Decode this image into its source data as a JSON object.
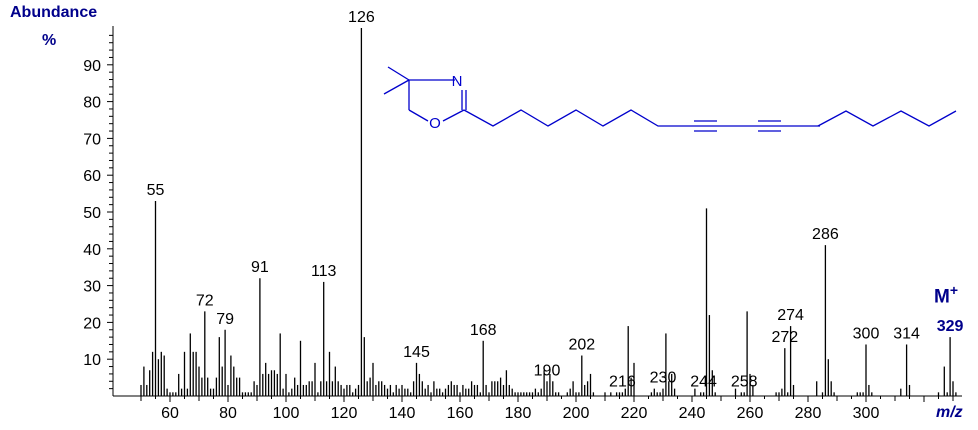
{
  "chart_data": {
    "type": "bar",
    "title": "",
    "xlabel": "m/z",
    "ylabel": "Abundance",
    "yunit": "%",
    "xlim": [
      40,
      332
    ],
    "ylim": [
      0,
      100
    ],
    "x_ticks": [
      60,
      80,
      100,
      120,
      140,
      160,
      180,
      200,
      220,
      240,
      260,
      280,
      300
    ],
    "y_ticks": [
      10,
      20,
      30,
      40,
      50,
      60,
      70,
      80,
      90
    ],
    "molecular_ion_label": "M+",
    "molecular_ion": 329,
    "labeled_peaks": [
      {
        "mz": 55,
        "label": "55"
      },
      {
        "mz": 72,
        "label": "72"
      },
      {
        "mz": 79,
        "label": "79"
      },
      {
        "mz": 91,
        "label": "91"
      },
      {
        "mz": 113,
        "label": "113"
      },
      {
        "mz": 126,
        "label": "126"
      },
      {
        "mz": 145,
        "label": "145"
      },
      {
        "mz": 168,
        "label": "168"
      },
      {
        "mz": 190,
        "label": "190"
      },
      {
        "mz": 202,
        "label": "202"
      },
      {
        "mz": 216,
        "label": "216"
      },
      {
        "mz": 230,
        "label": "230"
      },
      {
        "mz": 244,
        "label": "244"
      },
      {
        "mz": 258,
        "label": "258"
      },
      {
        "mz": 272,
        "label": "272"
      },
      {
        "mz": 274,
        "label": "274"
      },
      {
        "mz": 286,
        "label": "286"
      },
      {
        "mz": 300,
        "label": "300"
      },
      {
        "mz": 314,
        "label": "314"
      },
      {
        "mz": 329,
        "label": "329"
      }
    ],
    "x": [
      50,
      51,
      52,
      53,
      54,
      55,
      56,
      57,
      58,
      59,
      60,
      61,
      62,
      63,
      64,
      65,
      66,
      67,
      68,
      69,
      70,
      71,
      72,
      73,
      74,
      75,
      76,
      77,
      78,
      79,
      80,
      81,
      82,
      83,
      84,
      85,
      86,
      87,
      88,
      89,
      90,
      91,
      92,
      93,
      94,
      95,
      96,
      97,
      98,
      99,
      100,
      101,
      102,
      103,
      104,
      105,
      106,
      107,
      108,
      109,
      110,
      111,
      112,
      113,
      114,
      115,
      116,
      117,
      118,
      119,
      120,
      121,
      122,
      123,
      124,
      125,
      126,
      127,
      128,
      129,
      130,
      131,
      132,
      133,
      134,
      135,
      136,
      137,
      138,
      139,
      140,
      141,
      142,
      143,
      144,
      145,
      146,
      147,
      148,
      149,
      150,
      151,
      152,
      153,
      154,
      155,
      156,
      157,
      158,
      159,
      160,
      161,
      162,
      163,
      164,
      165,
      166,
      167,
      168,
      169,
      170,
      171,
      172,
      173,
      174,
      175,
      176,
      177,
      178,
      179,
      180,
      181,
      182,
      183,
      184,
      185,
      186,
      187,
      188,
      189,
      190,
      191,
      192,
      193,
      194,
      197,
      198,
      199,
      200,
      201,
      202,
      203,
      204,
      205,
      206,
      210,
      212,
      214,
      215,
      216,
      217,
      218,
      219,
      220,
      226,
      227,
      228,
      229,
      230,
      231,
      232,
      233,
      234,
      241,
      243,
      244,
      245,
      246,
      247,
      248,
      255,
      257,
      258,
      259,
      260,
      261,
      269,
      270,
      271,
      272,
      273,
      274,
      275,
      283,
      285,
      286,
      287,
      288,
      289,
      297,
      298,
      299,
      300,
      301,
      302,
      312,
      314,
      315,
      325,
      327,
      328,
      329,
      330,
      331
    ],
    "values": [
      3,
      8,
      3,
      7,
      12,
      53,
      10,
      12,
      11,
      2,
      1,
      1,
      1,
      6,
      2,
      12,
      2,
      17,
      12,
      12,
      8,
      5,
      23,
      5,
      2,
      2,
      5,
      16,
      8,
      18,
      3,
      11,
      8,
      5,
      5,
      1,
      1,
      1,
      1,
      4,
      3,
      32,
      6,
      9,
      6,
      7,
      7,
      6,
      17,
      2,
      6,
      1,
      2,
      5,
      3,
      15,
      3,
      3,
      4,
      4,
      9,
      1,
      4,
      31,
      4,
      12,
      4,
      8,
      4,
      3,
      2,
      3,
      3,
      1,
      2,
      3,
      100,
      16,
      4,
      5,
      9,
      3,
      4,
      4,
      3,
      2,
      3,
      1,
      3,
      2,
      3,
      2,
      2,
      1,
      4,
      9,
      6,
      4,
      2,
      3,
      1,
      4,
      2,
      2,
      1,
      2,
      3,
      4,
      3,
      3,
      1,
      3,
      2,
      2,
      4,
      3,
      3,
      1,
      15,
      3,
      1,
      4,
      4,
      4,
      5,
      3,
      7,
      3,
      2,
      1,
      1,
      1,
      1,
      1,
      1,
      1,
      2,
      1,
      2,
      7,
      4,
      6,
      4,
      1,
      1,
      1,
      2,
      4,
      1,
      1,
      11,
      3,
      4,
      6,
      1,
      1,
      1,
      1,
      1,
      1,
      2,
      19,
      5,
      9,
      1,
      2,
      1,
      1,
      2,
      17,
      4,
      6,
      2,
      2,
      1,
      1,
      51,
      22,
      7,
      1,
      2,
      1,
      1,
      23,
      6,
      3,
      1,
      1,
      2,
      13,
      1,
      19,
      3,
      4,
      1,
      41,
      10,
      4,
      1,
      1,
      1,
      1,
      14,
      3,
      1,
      2,
      14,
      3,
      1,
      8,
      1,
      16,
      4,
      1
    ]
  }
}
